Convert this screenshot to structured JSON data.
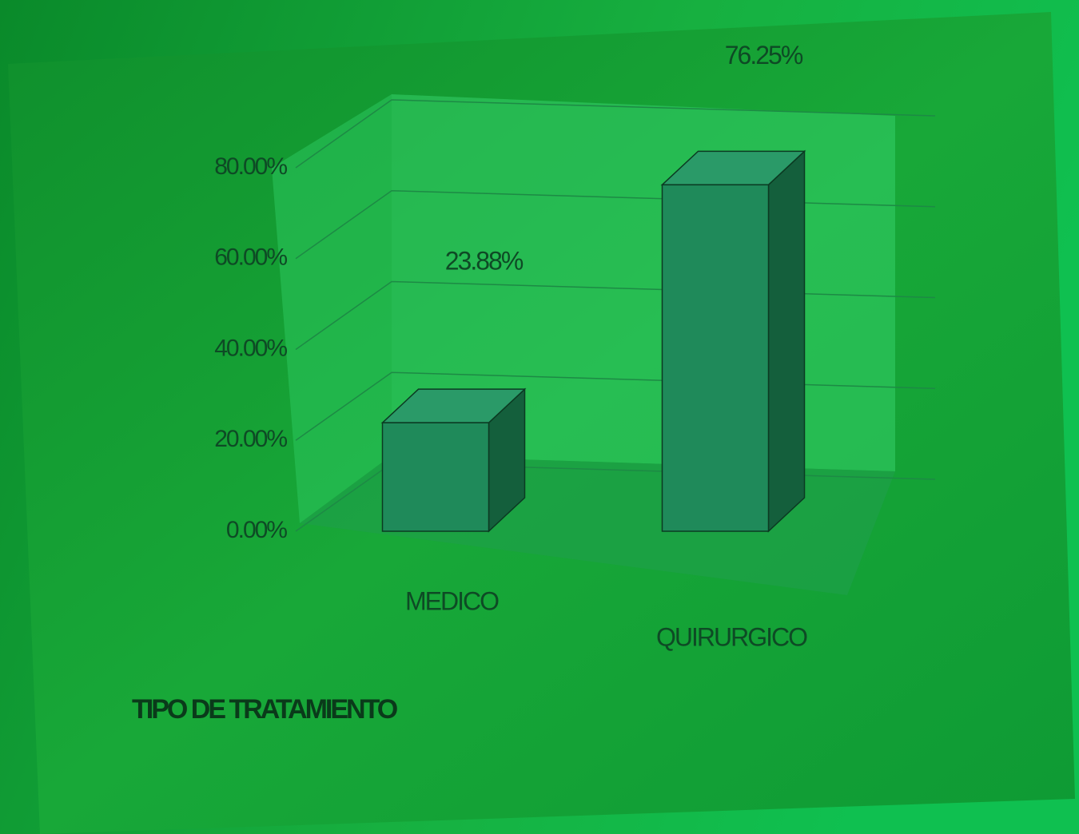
{
  "chart_data": {
    "type": "bar3d",
    "xlabel": "TIPO DE TRATAMIENTO",
    "categories": [
      "MEDICO",
      "QUIRURGICO"
    ],
    "values": [
      23.88,
      76.25
    ],
    "value_labels": [
      "23.88%",
      "76.25%"
    ],
    "color": "#1f8a5a",
    "ylim": [
      0,
      80
    ],
    "yticks": [
      {
        "value": 0,
        "label": "0.00%"
      },
      {
        "value": 20,
        "label": "20.00%"
      },
      {
        "value": 40,
        "label": "40.00%"
      },
      {
        "value": 60,
        "label": "60.00%"
      },
      {
        "value": 80,
        "label": "80.00%"
      }
    ],
    "grid": true
  }
}
